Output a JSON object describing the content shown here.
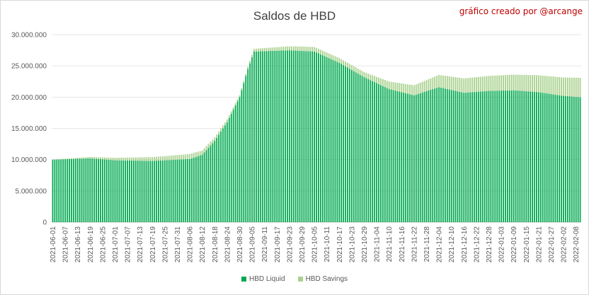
{
  "chart_data": {
    "type": "bar",
    "stacked": true,
    "title": "Saldos de HBD",
    "credit": "gráfico creado por @arcange",
    "ylim": [
      0,
      30000000
    ],
    "y_ticks": [
      "0",
      "5.000.000",
      "10.000.000",
      "15.000.000",
      "20.000.000",
      "25.000.000",
      "30.000.000"
    ],
    "y_tick_values": [
      0,
      5000000,
      10000000,
      15000000,
      20000000,
      25000000,
      30000000
    ],
    "grid": true,
    "legend_position": "bottom",
    "x_labels": [
      "2021-06-01",
      "2021-06-07",
      "2021-06-13",
      "2021-06-19",
      "2021-06-25",
      "2021-07-01",
      "2021-07-07",
      "2021-07-13",
      "2021-07-19",
      "2021-07-25",
      "2021-07-31",
      "2021-08-06",
      "2021-08-12",
      "2021-08-18",
      "2021-08-24",
      "2021-08-30",
      "2021-09-05",
      "2021-09-11",
      "2021-09-17",
      "2021-09-23",
      "2021-09-29",
      "2021-10-05",
      "2021-10-11",
      "2021-10-17",
      "2021-10-23",
      "2021-10-29",
      "2021-11-04",
      "2021-11-10",
      "2021-11-16",
      "2021-11-22",
      "2021-11-28",
      "2021-12-04",
      "2021-12-10",
      "2021-12-16",
      "2021-12-22",
      "2021-12-28",
      "2022-01-03",
      "2022-01-09",
      "2022-01-15",
      "2022-01-21",
      "2022-01-27",
      "2022-02-02",
      "2022-02-08"
    ],
    "x_start": "2021-06-01",
    "x_end": "2022-02-10",
    "series": [
      {
        "name": "HBD Liquid",
        "color": "#00a94f",
        "points": [
          [
            "2021-06-01",
            10000000
          ],
          [
            "2021-06-19",
            10200000
          ],
          [
            "2021-07-01",
            9900000
          ],
          [
            "2021-07-19",
            9800000
          ],
          [
            "2021-08-06",
            10100000
          ],
          [
            "2021-08-12",
            10800000
          ],
          [
            "2021-08-18",
            13000000
          ],
          [
            "2021-08-24",
            16000000
          ],
          [
            "2021-08-30",
            20000000
          ],
          [
            "2021-09-03",
            24500000
          ],
          [
            "2021-09-06",
            27300000
          ],
          [
            "2021-09-23",
            27500000
          ],
          [
            "2021-10-05",
            27300000
          ],
          [
            "2021-10-17",
            25500000
          ],
          [
            "2021-10-29",
            23200000
          ],
          [
            "2021-11-10",
            21300000
          ],
          [
            "2021-11-22",
            20300000
          ],
          [
            "2021-12-04",
            21600000
          ],
          [
            "2021-12-16",
            20700000
          ],
          [
            "2021-12-28",
            21000000
          ],
          [
            "2022-01-09",
            21100000
          ],
          [
            "2022-01-21",
            20800000
          ],
          [
            "2022-02-02",
            20200000
          ],
          [
            "2022-02-10",
            20000000
          ]
        ]
      },
      {
        "name": "HBD Savings",
        "color": "#a9d18e",
        "points": [
          [
            "2021-06-01",
            0
          ],
          [
            "2021-07-01",
            400000
          ],
          [
            "2021-08-06",
            800000
          ],
          [
            "2021-08-30",
            300000
          ],
          [
            "2021-09-11",
            500000
          ],
          [
            "2021-09-29",
            700000
          ],
          [
            "2021-10-29",
            800000
          ],
          [
            "2021-11-22",
            1600000
          ],
          [
            "2021-12-16",
            2300000
          ],
          [
            "2022-01-09",
            2500000
          ],
          [
            "2022-01-21",
            2700000
          ],
          [
            "2022-02-10",
            3100000
          ]
        ]
      }
    ]
  }
}
